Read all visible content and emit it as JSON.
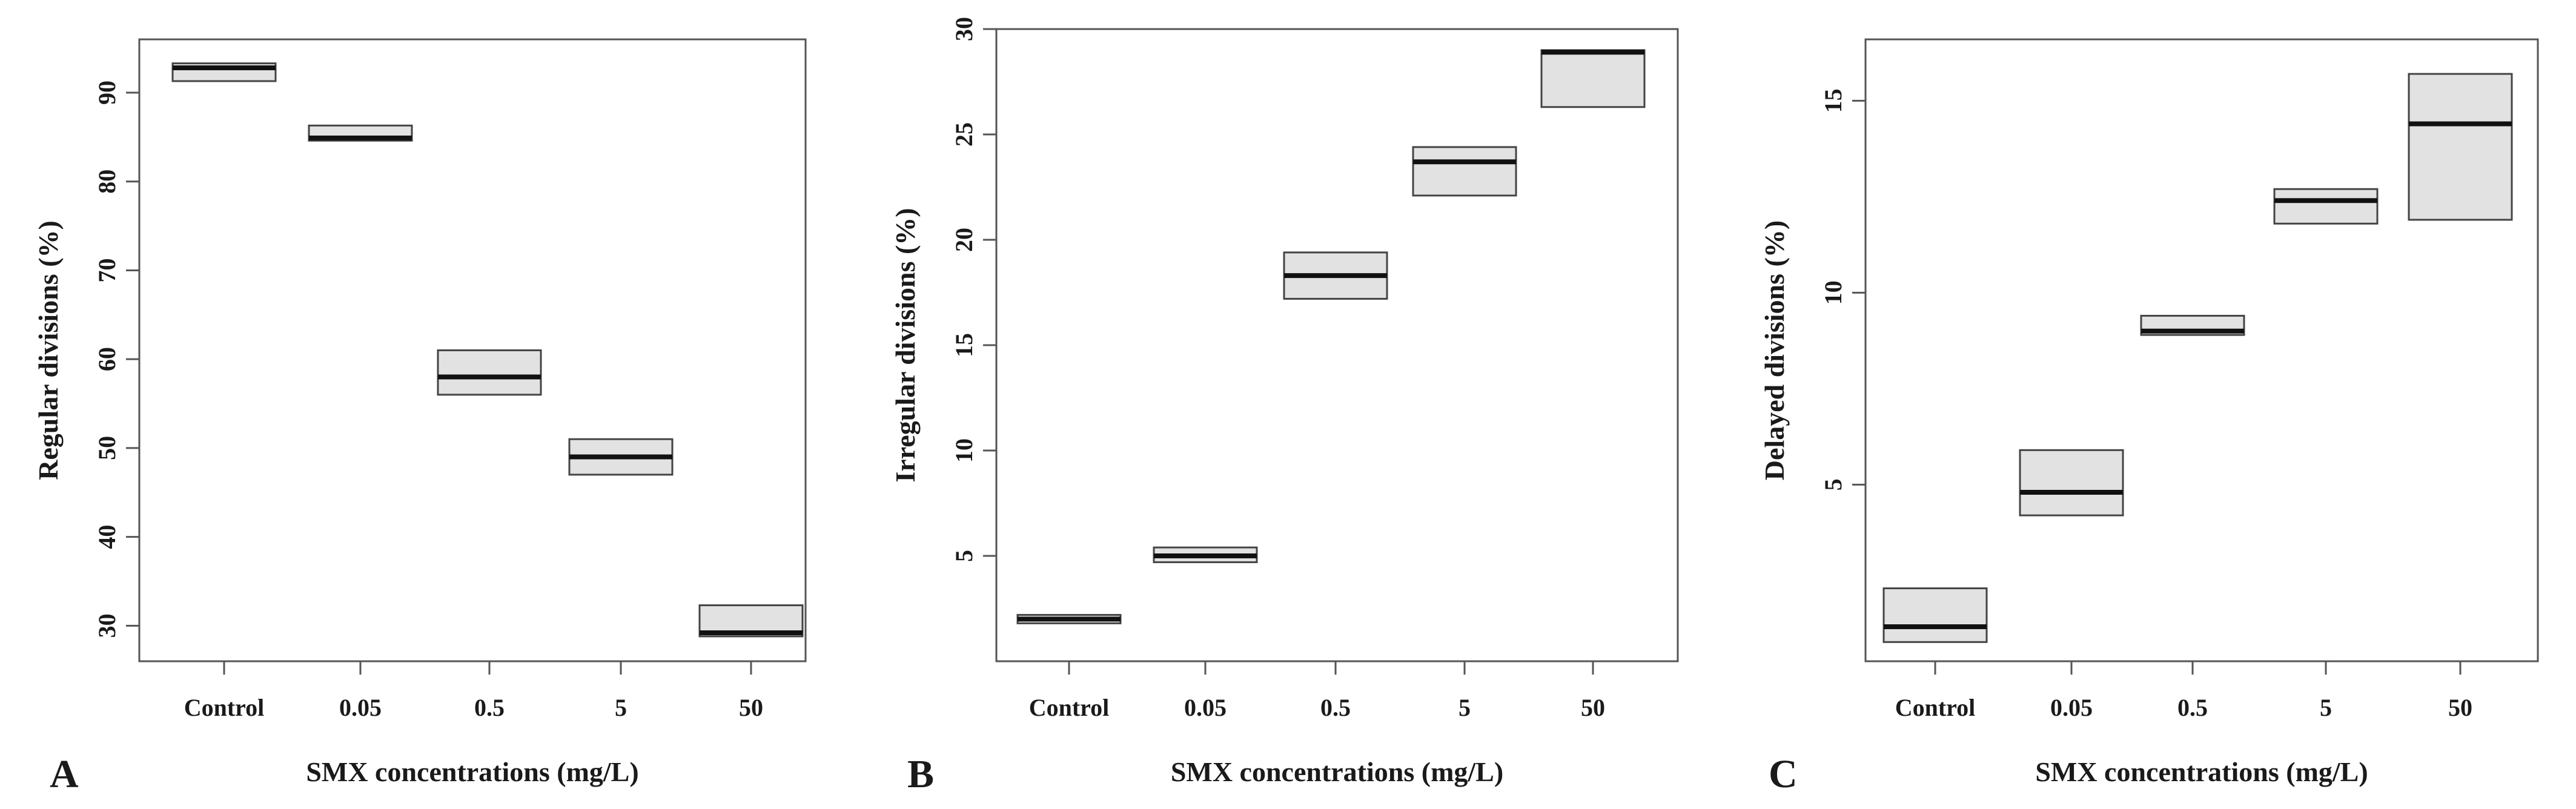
{
  "chart_data": [
    {
      "type": "box",
      "panel_label": "A",
      "xlabel": "SMX concentrations (mg/L)",
      "ylabel": "Regular divisions (%)",
      "categories": [
        "Control",
        "0.05",
        "0.5",
        "5",
        "50"
      ],
      "ylim": [
        26,
        96
      ],
      "yticks": [
        30,
        40,
        50,
        60,
        70,
        80,
        90
      ],
      "boxes": [
        {
          "q1": 91.3,
          "median": 92.8,
          "q3": 93.3
        },
        {
          "q1": 84.6,
          "median": 84.9,
          "q3": 86.3
        },
        {
          "q1": 56.0,
          "median": 58.0,
          "q3": 61.0
        },
        {
          "q1": 47.0,
          "median": 49.0,
          "q3": 51.0
        },
        {
          "q1": 28.8,
          "median": 29.2,
          "q3": 32.3
        }
      ]
    },
    {
      "type": "box",
      "panel_label": "B",
      "xlabel": "SMX concentrations (mg/L)",
      "ylabel": "Irregular divisions (%)",
      "categories": [
        "Control",
        "0.05",
        "0.5",
        "5",
        "50"
      ],
      "ylim": [
        0,
        30
      ],
      "yticks": [
        5,
        10,
        15,
        20,
        25,
        30
      ],
      "boxes": [
        {
          "q1": 1.8,
          "median": 2.0,
          "q3": 2.2
        },
        {
          "q1": 4.7,
          "median": 5.0,
          "q3": 5.4
        },
        {
          "q1": 17.2,
          "median": 18.3,
          "q3": 19.4
        },
        {
          "q1": 22.1,
          "median": 23.7,
          "q3": 24.4
        },
        {
          "q1": 26.3,
          "median": 28.9,
          "q3": 29.0
        }
      ]
    },
    {
      "type": "box",
      "panel_label": "C",
      "xlabel": "SMX concentrations (mg/L)",
      "ylabel": "Delayed divisions (%)",
      "categories": [
        "Control",
        "0.05",
        "0.5",
        "5",
        "50"
      ],
      "ylim": [
        0.4,
        16.6
      ],
      "yticks": [
        5,
        10,
        15
      ],
      "boxes": [
        {
          "q1": 0.9,
          "median": 1.3,
          "q3": 2.3
        },
        {
          "q1": 4.2,
          "median": 4.8,
          "q3": 5.9
        },
        {
          "q1": 8.9,
          "median": 9.0,
          "q3": 9.4
        },
        {
          "q1": 11.8,
          "median": 12.4,
          "q3": 12.7
        },
        {
          "q1": 11.9,
          "median": 14.4,
          "q3": 15.7
        }
      ]
    }
  ]
}
